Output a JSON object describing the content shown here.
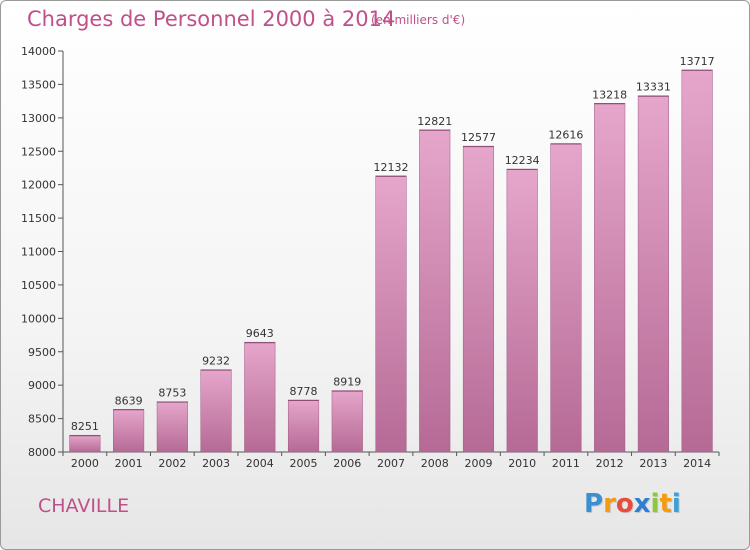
{
  "header": {
    "title": "Charges de Personnel 2000 à 2014",
    "subtitle": "(en milliers d'€)"
  },
  "footer": {
    "city": "CHAVILLE",
    "logo_letters": [
      {
        "ch": "P",
        "color": "#3a8fd0"
      },
      {
        "ch": "r",
        "color": "#f39c12"
      },
      {
        "ch": "o",
        "color": "#e74c3c"
      },
      {
        "ch": "x",
        "color": "#2f7fd1"
      },
      {
        "ch": "i",
        "color": "#8dc63f"
      },
      {
        "ch": "t",
        "color": "#f39c12"
      },
      {
        "ch": "i",
        "color": "#3aa0d8"
      }
    ]
  },
  "chart_data": {
    "type": "bar",
    "title": "Charges de Personnel 2000 à 2014",
    "subtitle": "(en milliers d'€)",
    "categories": [
      "2000",
      "2001",
      "2002",
      "2003",
      "2004",
      "2005",
      "2006",
      "2007",
      "2008",
      "2009",
      "2010",
      "2011",
      "2012",
      "2013",
      "2014"
    ],
    "values": [
      8251,
      8639,
      8753,
      9232,
      9643,
      8778,
      8919,
      12132,
      12821,
      12577,
      12234,
      12616,
      13218,
      13331,
      13717
    ],
    "ylim": [
      8000,
      14000
    ],
    "yticks": [
      8000,
      8500,
      9000,
      9500,
      10000,
      10500,
      11000,
      11500,
      12000,
      12500,
      13000,
      13500,
      14000
    ],
    "grid": false,
    "legend": "none",
    "bar_color": "#c86fa0"
  }
}
